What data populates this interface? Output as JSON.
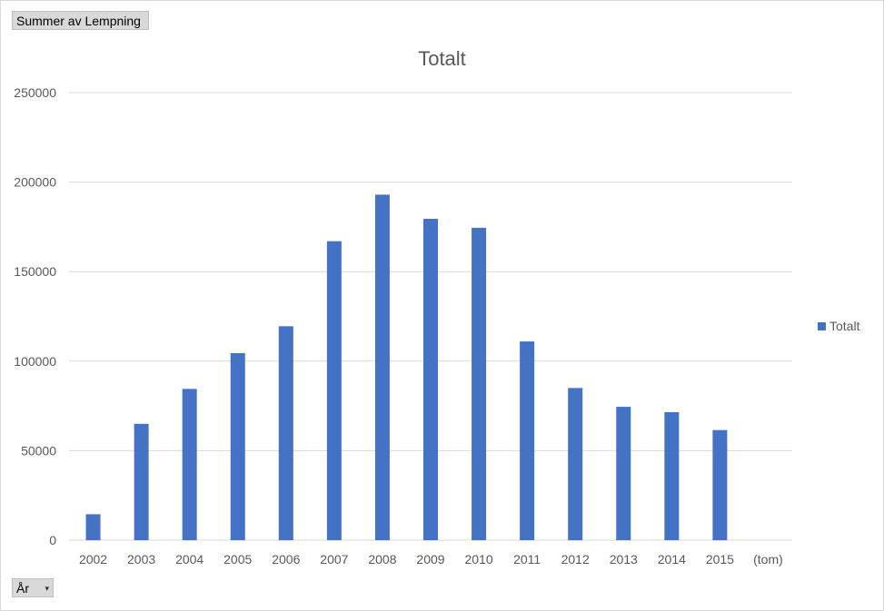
{
  "pivot": {
    "values_field": "Summer av Lempning",
    "axis_field": "År",
    "axis_arrow": "▾"
  },
  "colors": {
    "bar": "#4472c4",
    "grid": "#d9d9d9",
    "text": "#595959"
  },
  "chart_data": {
    "type": "bar",
    "title": "Totalt",
    "categories": [
      "2002",
      "2003",
      "2004",
      "2005",
      "2006",
      "2007",
      "2008",
      "2009",
      "2010",
      "2011",
      "2012",
      "2013",
      "2014",
      "2015",
      "(tom)"
    ],
    "series": [
      {
        "name": "Totalt",
        "values": [
          14500,
          65000,
          84500,
          104500,
          119500,
          167000,
          193000,
          179500,
          174500,
          111000,
          85000,
          74500,
          71500,
          61500,
          null
        ]
      }
    ],
    "ylim": [
      0,
      250000
    ],
    "yticks": [
      "0",
      "50000",
      "100000",
      "150000",
      "200000",
      "250000"
    ],
    "grid": true,
    "legend_position": "right"
  }
}
